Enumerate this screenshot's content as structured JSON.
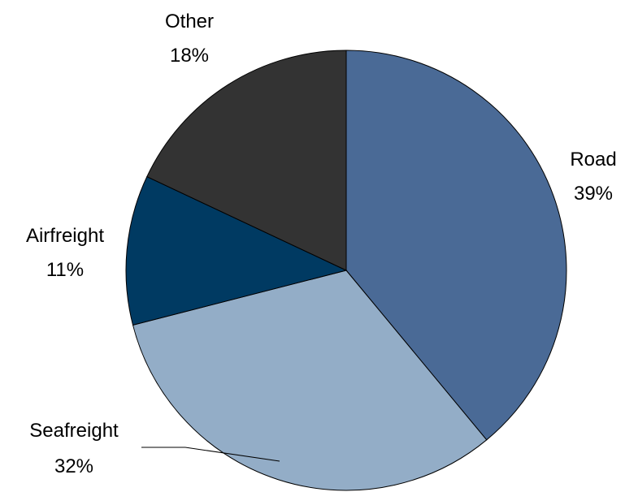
{
  "chart_data": {
    "type": "pie",
    "title": "",
    "slices": [
      {
        "label": "Road",
        "value": 39,
        "value_label": "39%",
        "color": "#4A6A96"
      },
      {
        "label": "Seafreight",
        "value": 32,
        "value_label": "32%",
        "color": "#93ADC7"
      },
      {
        "label": "Airfreight",
        "value": 11,
        "value_label": "11%",
        "color": "#003A62"
      },
      {
        "label": "Other",
        "value": 18,
        "value_label": "18%",
        "color": "#333333"
      }
    ],
    "start_angle": "12 o'clock",
    "direction": "clockwise",
    "legend": "none",
    "label_placement": "outside"
  }
}
